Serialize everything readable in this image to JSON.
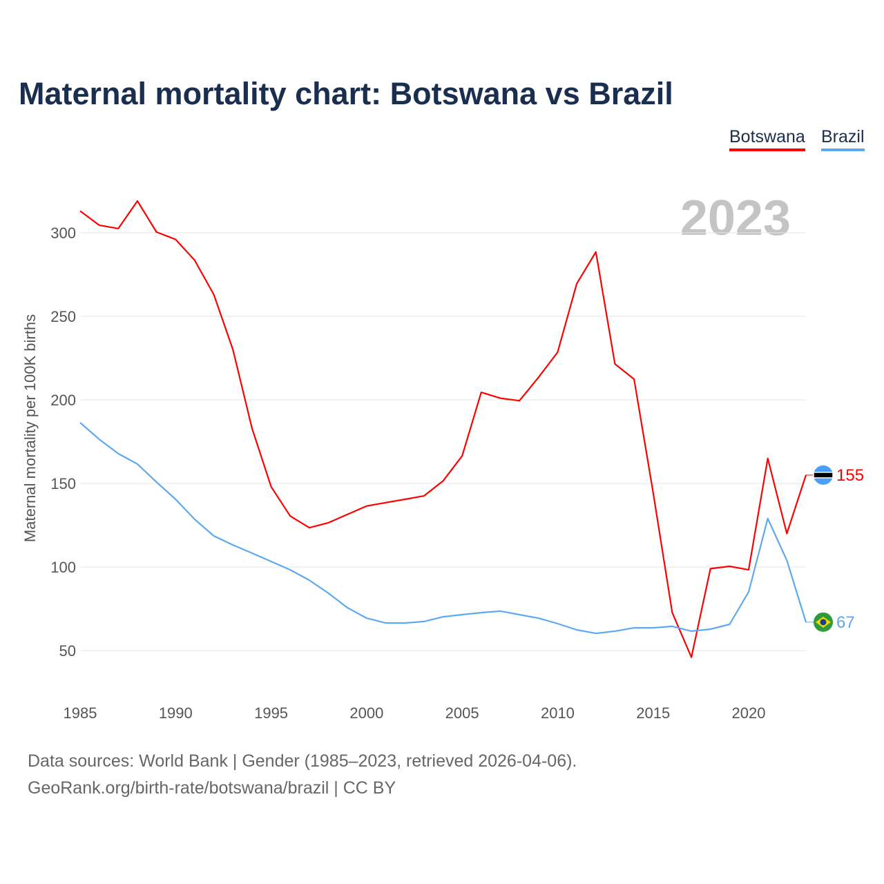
{
  "chart_data": {
    "type": "line",
    "title": "Maternal mortality chart: Botswana vs Brazil",
    "ylabel": "Maternal mortality per 100K births",
    "xlabel": "",
    "year_label": "2023",
    "ylim": [
      30,
      330
    ],
    "xlim": [
      1985,
      2023
    ],
    "yticks": [
      50,
      100,
      150,
      200,
      250,
      300
    ],
    "xticks": [
      1985,
      1990,
      1995,
      2000,
      2005,
      2010,
      2015,
      2020
    ],
    "grid": true,
    "legend_position": "top-right",
    "x": [
      1985,
      1986,
      1987,
      1988,
      1989,
      1990,
      1991,
      1992,
      1993,
      1994,
      1995,
      1996,
      1997,
      1998,
      1999,
      2000,
      2001,
      2002,
      2003,
      2004,
      2005,
      2006,
      2007,
      2008,
      2009,
      2010,
      2011,
      2012,
      2013,
      2014,
      2015,
      2016,
      2017,
      2018,
      2019,
      2020,
      2021,
      2022,
      2023
    ],
    "series": [
      {
        "name": "Botswana",
        "color": "#ff0000",
        "end_label": "155",
        "values": [
          313,
          304.5,
          302.5,
          319,
          300.4,
          296,
          283.5,
          263,
          230,
          183,
          148,
          130.5,
          123.5,
          126.5,
          131.5,
          136.5,
          138.5,
          140.5,
          142.5,
          151.5,
          166.5,
          204.5,
          201,
          199.5,
          213.5,
          228.5,
          269.5,
          288.5,
          221.5,
          212.4,
          144.6,
          72.7,
          46,
          99,
          100.4,
          98.3,
          165,
          120,
          155
        ]
      },
      {
        "name": "Brazil",
        "color": "#5ea8f0",
        "end_label": "67",
        "values": [
          186.4,
          176.4,
          167.8,
          161.6,
          150.8,
          140.5,
          128.5,
          118.6,
          113.2,
          108.3,
          103.3,
          98.3,
          92.1,
          84.3,
          75.6,
          69.4,
          66.5,
          66.5,
          67.4,
          70.2,
          71.5,
          72.7,
          73.6,
          71.5,
          69.4,
          66.1,
          62.4,
          60.3,
          61.6,
          63.6,
          63.6,
          64.5,
          61.6,
          62.8,
          65.7,
          85.1,
          129,
          104,
          67
        ]
      }
    ]
  },
  "footer": {
    "line1": "Data sources: World Bank | Gender (1985–2023, retrieved 2026-04-06).",
    "line2": "GeoRank.org/birth-rate/botswana/brazil | CC BY"
  }
}
